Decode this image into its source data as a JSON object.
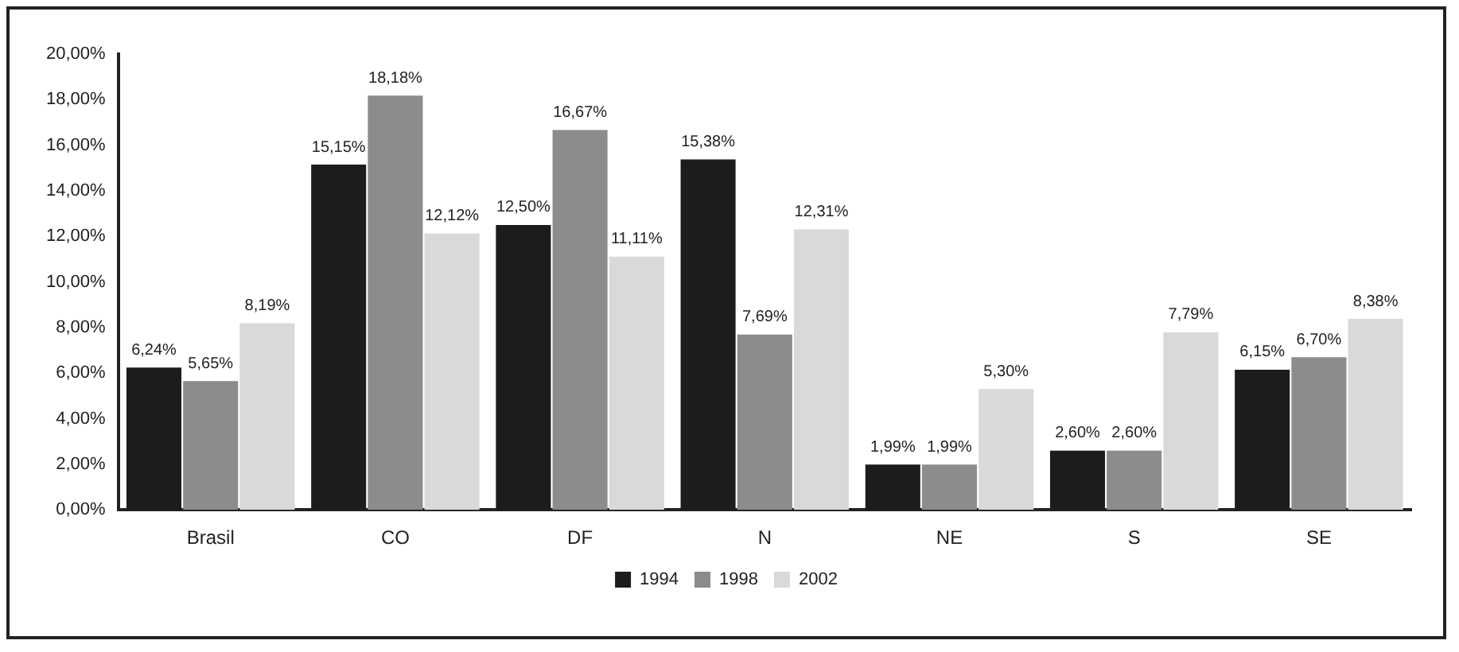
{
  "chart_data": {
    "type": "bar",
    "categories": [
      "Brasil",
      "CO",
      "DF",
      "N",
      "NE",
      "S",
      "SE"
    ],
    "series": [
      {
        "name": "1994",
        "color": "#1c1c1c",
        "values": [
          6.24,
          15.15,
          12.5,
          15.38,
          1.99,
          2.6,
          6.15
        ],
        "value_labels": [
          "6,24%",
          "15,15%",
          "12,50%",
          "15,38%",
          "1,99%",
          "2,60%",
          "6,15%"
        ]
      },
      {
        "name": "1998",
        "color": "#8c8c8c",
        "values": [
          5.65,
          18.18,
          16.67,
          7.69,
          1.99,
          2.6,
          6.7
        ],
        "value_labels": [
          "5,65%",
          "18,18%",
          "16,67%",
          "7,69%",
          "1,99%",
          "2,60%",
          "6,70%"
        ]
      },
      {
        "name": "2002",
        "color": "#d9d9d9",
        "values": [
          8.19,
          12.12,
          11.11,
          12.31,
          5.3,
          7.79,
          8.38
        ],
        "value_labels": [
          "8,19%",
          "12,12%",
          "11,11%",
          "12,31%",
          "5,30%",
          "7,79%",
          "8,38%"
        ]
      }
    ],
    "ylim": [
      0,
      20
    ],
    "yticks": [
      {
        "value": 0,
        "label": "0,00%"
      },
      {
        "value": 2,
        "label": "2,00%"
      },
      {
        "value": 4,
        "label": "4,00%"
      },
      {
        "value": 6,
        "label": "6,00%"
      },
      {
        "value": 8,
        "label": "8,00%"
      },
      {
        "value": 10,
        "label": "10,00%"
      },
      {
        "value": 12,
        "label": "12,00%"
      },
      {
        "value": 14,
        "label": "14,00%"
      },
      {
        "value": 16,
        "label": "16,00%"
      },
      {
        "value": 18,
        "label": "18,00%"
      },
      {
        "value": 20,
        "label": "20,00%"
      }
    ],
    "grid": false,
    "legend": "bottom"
  }
}
